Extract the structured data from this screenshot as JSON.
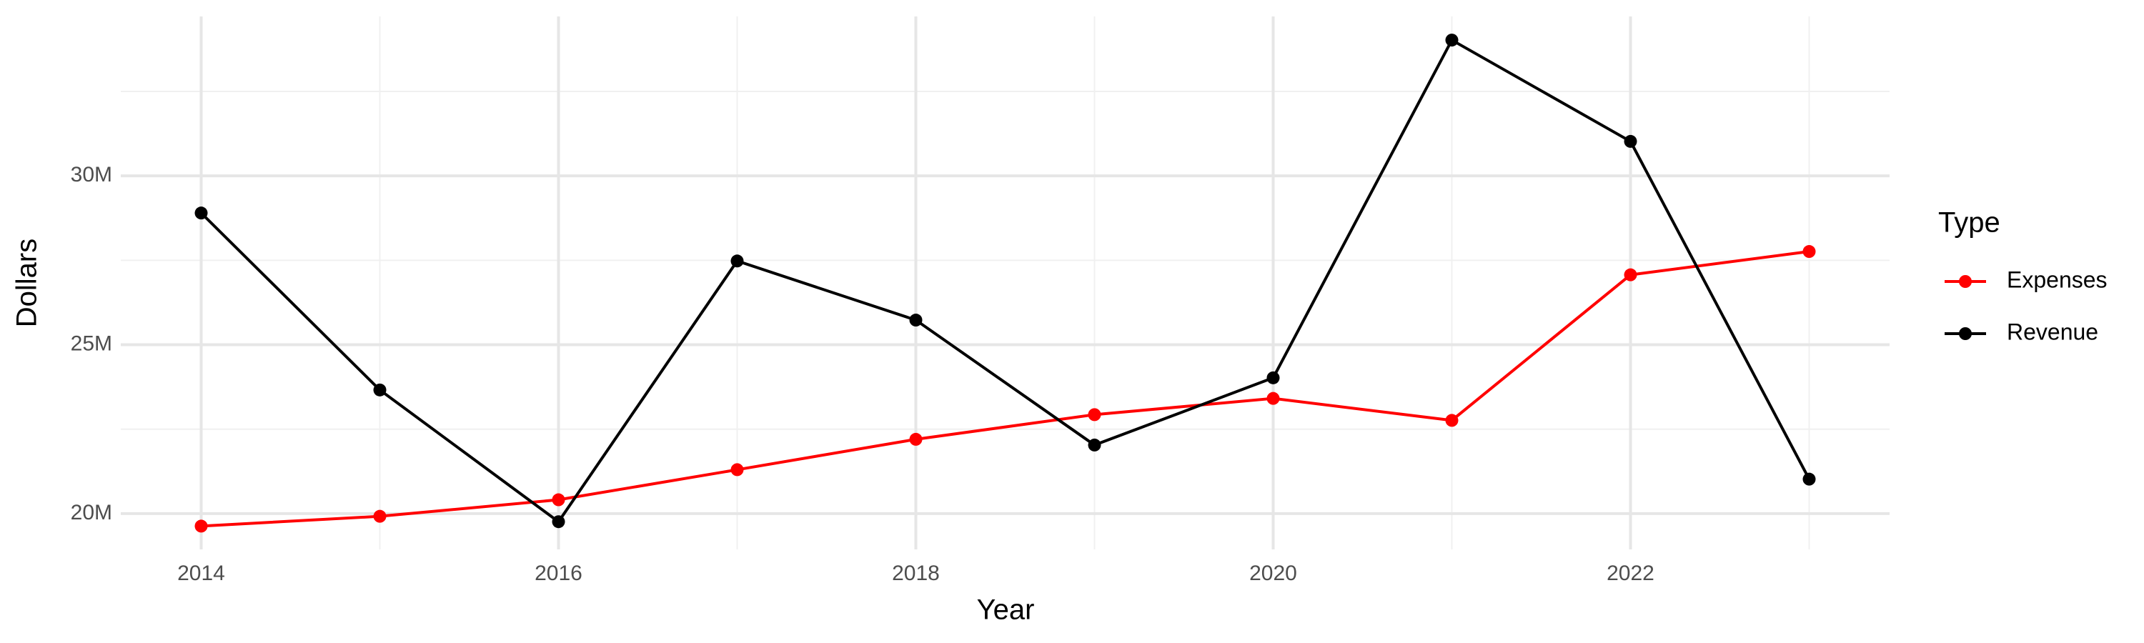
{
  "chart_data": {
    "type": "line",
    "x_label": "Year",
    "y_label": "Dollars",
    "legend_title": "Type",
    "x": [
      2014,
      2015,
      2016,
      2017,
      2018,
      2019,
      2020,
      2021,
      2022,
      2023
    ],
    "series": [
      {
        "name": "Expenses",
        "color": "#ff0000",
        "values": [
          19630000,
          19920000,
          20410000,
          21300000,
          22200000,
          22930000,
          23410000,
          22760000,
          27070000,
          27760000
        ]
      },
      {
        "name": "Revenue",
        "color": "#000000",
        "values": [
          28900000,
          23660000,
          19760000,
          27480000,
          25730000,
          22030000,
          24020000,
          34020000,
          31020000,
          21020000
        ]
      }
    ],
    "xlim": [
      2013.55,
      2023.45
    ],
    "xticks": [
      2014,
      2016,
      2018,
      2020,
      2022
    ],
    "x_minor_grid": [
      2015,
      2017,
      2019,
      2021,
      2023
    ],
    "ylim": [
      18940000,
      34720000
    ],
    "yticks": [
      {
        "value": 20000000,
        "label": "20M"
      },
      {
        "value": 25000000,
        "label": "25M"
      },
      {
        "value": 30000000,
        "label": "30M"
      }
    ],
    "y_minor_grid": [
      22500000,
      27500000,
      32500000
    ],
    "grid": true,
    "legend": "right"
  }
}
